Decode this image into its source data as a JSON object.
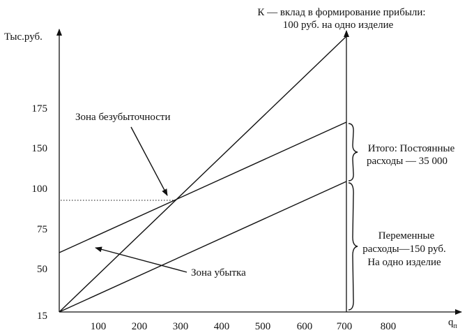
{
  "axes": {
    "y_label": "Тыс.руб.",
    "x_label": "q",
    "x_label_sub": "п",
    "y_ticks": [
      "15",
      "50",
      "75",
      "100",
      "150",
      "175"
    ],
    "x_ticks": [
      "100",
      "200",
      "300",
      "400",
      "500",
      "600",
      "700",
      "800"
    ]
  },
  "annotations": {
    "revenue": [
      "К — вклад в формирование прибыли:",
      "100 руб. на одно изделие"
    ],
    "break_even": "Зона безубыточности",
    "loss": "Зона убытка",
    "fixed": [
      "Итого: Постоянные",
      "расходы — 35 000"
    ],
    "variable": [
      "Переменные",
      "расходы—150 руб.",
      "На одно изделие"
    ]
  }
}
